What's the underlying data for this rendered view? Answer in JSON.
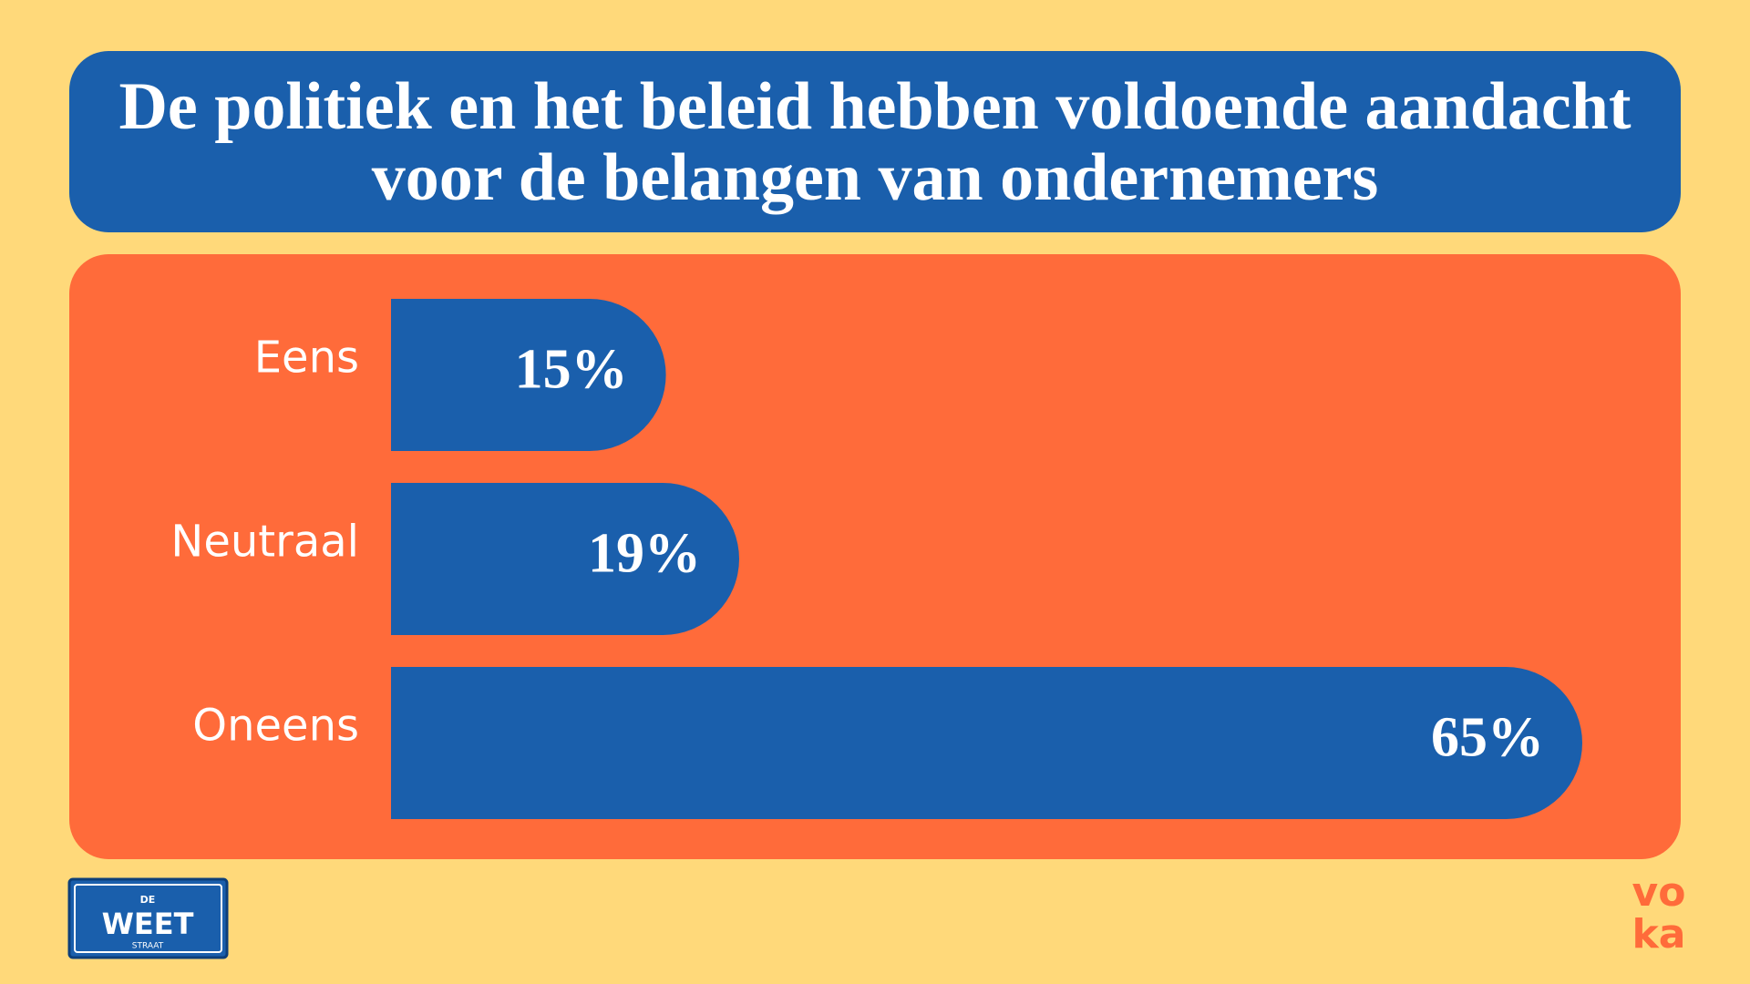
{
  "chart_data": {
    "type": "bar",
    "orientation": "horizontal",
    "title": "De politiek en het beleid hebben voldoende aandacht voor de belangen van ondernemers",
    "categories": [
      "Eens",
      "Neutraal",
      "Oneens"
    ],
    "values": [
      15,
      19,
      65
    ],
    "value_labels": [
      "15%",
      "19%",
      "65%"
    ],
    "color": "#1a5fac"
  },
  "branding": {
    "sign": [
      "DE",
      "WEET",
      "STRAAT"
    ],
    "logo": [
      "vo",
      "ka"
    ]
  }
}
